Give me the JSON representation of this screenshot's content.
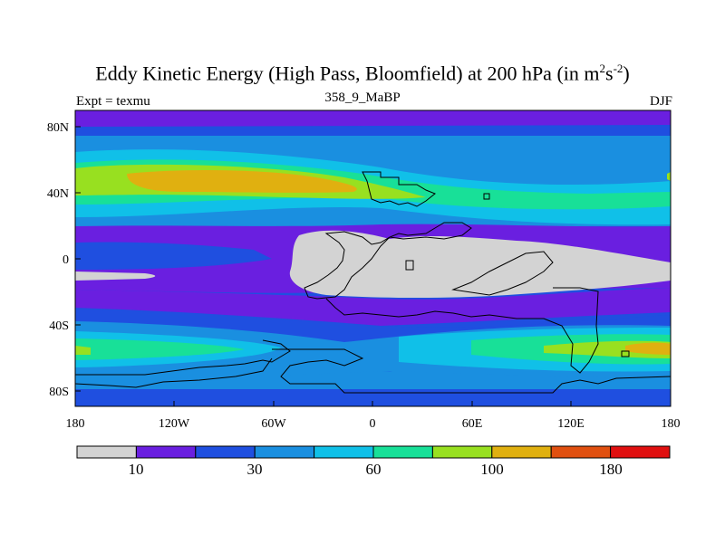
{
  "title": {
    "main": "Eddy Kinetic Energy (High Pass, Bloomfield) at 200 hPa (in m",
    "sup1": "2",
    "mid": "s",
    "sup2": "-2",
    "end": ")"
  },
  "subtitle": "358_9_MaBP",
  "left_label": "Expt = texmu",
  "right_label": "DJF",
  "axes": {
    "lat_ticks": [
      "80N",
      "40N",
      "0",
      "40S",
      "80S"
    ],
    "lon_ticks": [
      "180",
      "120W",
      "60W",
      "0",
      "60E",
      "120E",
      "180"
    ]
  },
  "colorbar": {
    "colors": [
      "#d3d3d3",
      "#6a1fe0",
      "#1f4fe0",
      "#1a8fe0",
      "#10c0e8",
      "#18e098",
      "#98e020",
      "#e0b010",
      "#e05010",
      "#e01010"
    ],
    "labels": [
      "10",
      "30",
      "60",
      "100",
      "180"
    ]
  }
}
